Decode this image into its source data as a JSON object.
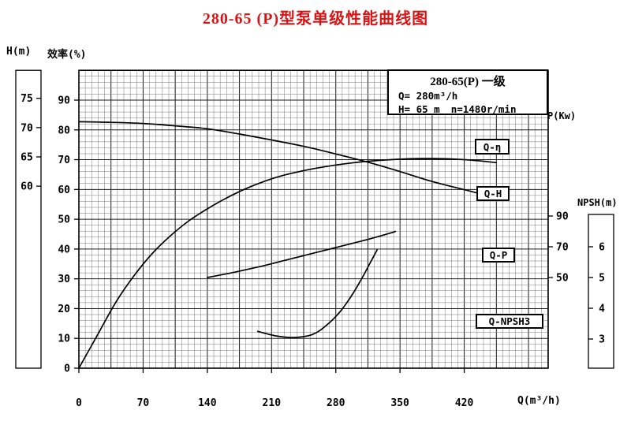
{
  "title": "280-65 (P)型泵单级性能曲线图",
  "info_box": {
    "model": "280-65(P) 一级",
    "flow": "Q= 280m³/h",
    "head": "H= 65 m",
    "speed": "n=1480r/min"
  },
  "axes": {
    "head": {
      "label": "H(m)",
      "ticks": [
        75,
        70,
        65,
        60
      ]
    },
    "efficiency": {
      "label": "效率(%)",
      "ticks": [
        90,
        80,
        70,
        60,
        50,
        40,
        30,
        20,
        10,
        0
      ]
    },
    "power": {
      "label": "P(Kw)",
      "ticks": [
        90,
        70,
        50
      ]
    },
    "npsh": {
      "label": "NPSH(m)",
      "ticks": [
        6,
        5,
        4,
        3
      ]
    },
    "flow": {
      "label": "Q(m³/h)",
      "ticks": [
        0,
        70,
        140,
        210,
        280,
        350,
        420
      ]
    }
  },
  "chart_data": {
    "type": "line",
    "title": "280-65 (P)型泵单级性能曲线图",
    "xlabel": "Q(m³/h)",
    "x_range": [
      0,
      511
    ],
    "x_ticks": [
      0,
      70,
      140,
      210,
      280,
      350,
      420
    ],
    "grid": "fine graph-paper grid, on",
    "legend_position": "boxed labels at right edge of plot",
    "axes_info": {
      "head": {
        "label": "H(m)",
        "visible_ticks": [
          60,
          65,
          70,
          75
        ],
        "side": "far-left"
      },
      "efficiency": {
        "label": "效率(%)",
        "range": [
          0,
          100
        ],
        "side": "left"
      },
      "power": {
        "label": "P(Kw)",
        "visible_ticks": [
          50,
          70,
          90
        ],
        "side": "right"
      },
      "npsh": {
        "label": "NPSH(m)",
        "visible_ticks": [
          3,
          4,
          5,
          6
        ],
        "side": "far-right"
      }
    },
    "rated_point": {
      "Q": "280m³/h",
      "H": "65 m",
      "n": "1480r/min"
    },
    "series": [
      {
        "name": "Q-H",
        "axis": "head",
        "points": [
          [
            0,
            71
          ],
          [
            35,
            70.9
          ],
          [
            70,
            70.7
          ],
          [
            105,
            70.3
          ],
          [
            140,
            69.8
          ],
          [
            175,
            68.9
          ],
          [
            210,
            67.9
          ],
          [
            245,
            66.8
          ],
          [
            280,
            65.5
          ],
          [
            315,
            64.1
          ],
          [
            350,
            62.5
          ],
          [
            385,
            60.8
          ],
          [
            420,
            59.4
          ],
          [
            440,
            58.6
          ]
        ]
      },
      {
        "name": "Q-η",
        "axis": "efficiency",
        "points": [
          [
            0,
            0
          ],
          [
            20,
            11
          ],
          [
            40,
            22
          ],
          [
            60,
            31
          ],
          [
            80,
            38.5
          ],
          [
            100,
            44.5
          ],
          [
            120,
            49.5
          ],
          [
            140,
            53.5
          ],
          [
            160,
            57
          ],
          [
            180,
            60
          ],
          [
            200,
            62.5
          ],
          [
            220,
            64.5
          ],
          [
            240,
            66
          ],
          [
            260,
            67.2
          ],
          [
            280,
            68.2
          ],
          [
            300,
            69
          ],
          [
            320,
            69.6
          ],
          [
            340,
            70
          ],
          [
            360,
            70.3
          ],
          [
            380,
            70.4
          ],
          [
            400,
            70.3
          ],
          [
            420,
            70
          ],
          [
            440,
            69.5
          ],
          [
            455,
            69
          ]
        ]
      },
      {
        "name": "Q-P",
        "axis": "power",
        "points": [
          [
            140,
            50
          ],
          [
            170,
            53.5
          ],
          [
            200,
            57.5
          ],
          [
            230,
            62
          ],
          [
            260,
            66.5
          ],
          [
            280,
            69.5
          ],
          [
            310,
            74
          ],
          [
            340,
            79
          ],
          [
            345,
            80
          ]
        ]
      },
      {
        "name": "Q-NPSH3",
        "axis": "npsh",
        "points": [
          [
            195,
            3.25
          ],
          [
            215,
            3.1
          ],
          [
            235,
            3.05
          ],
          [
            255,
            3.15
          ],
          [
            270,
            3.45
          ],
          [
            285,
            3.9
          ],
          [
            297,
            4.4
          ],
          [
            308,
            4.95
          ],
          [
            317,
            5.45
          ],
          [
            325,
            5.9
          ]
        ]
      }
    ]
  }
}
